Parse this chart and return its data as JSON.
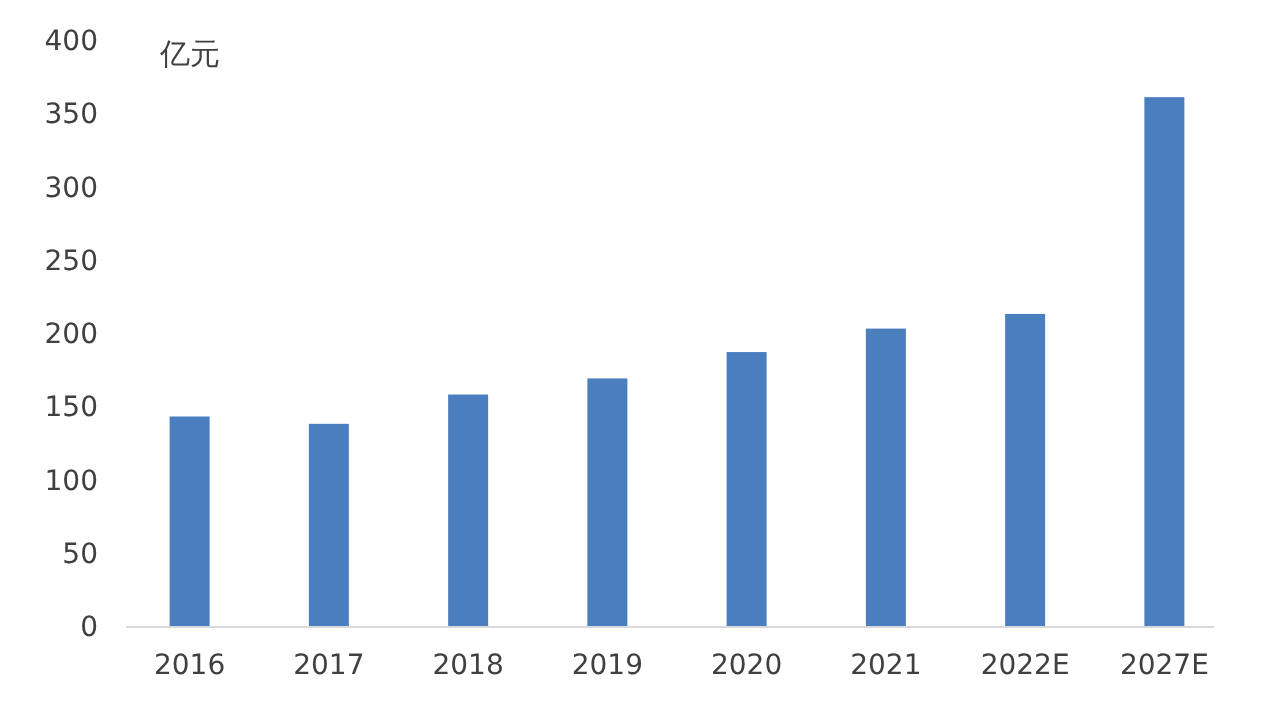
{
  "chart_data": {
    "type": "bar",
    "ylabel": "亿元",
    "categories": [
      "2016",
      "2017",
      "2018",
      "2019",
      "2020",
      "2021",
      "2022E",
      "2027E"
    ],
    "values": [
      143,
      138,
      158,
      169,
      187,
      203,
      213,
      361
    ],
    "color": "#4a7ebf",
    "ylim": [
      0,
      400
    ],
    "yticks": [
      0,
      50,
      100,
      150,
      200,
      250,
      300,
      350,
      400
    ]
  }
}
